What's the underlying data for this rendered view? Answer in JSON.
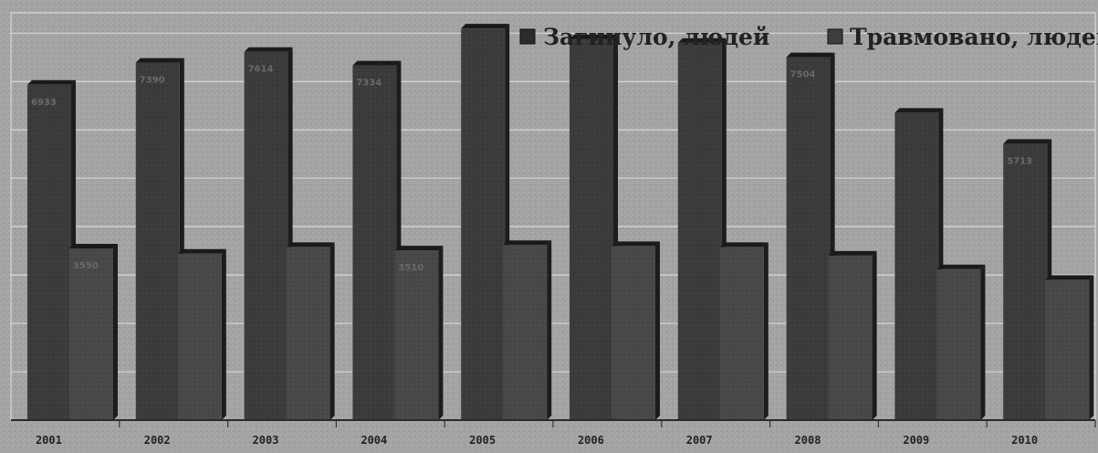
{
  "colors": {
    "background": "#9a9a9a",
    "plot_area": "#a3a3a3",
    "gridline": "#d8d8d8",
    "bar_killed": "#3b3b3b",
    "bar_injured": "#484848",
    "bar_side": "#1c1c1c",
    "text": "#222222"
  },
  "legend": {
    "killed_label": "Загинуло, людей",
    "injured_label": "Травмовано, людей",
    "placement": "top-right"
  },
  "chart_data": {
    "type": "bar",
    "title": "",
    "xlabel": "",
    "ylabel": "",
    "grid": true,
    "categories": [
      "2001",
      "2002",
      "2003",
      "2004",
      "2005",
      "2006",
      "2007",
      "2008",
      "2009",
      "2010"
    ],
    "ylim": [
      0,
      8000
    ],
    "series": [
      {
        "name": "Загинуло, людей",
        "values": [
          6933,
          7390,
          7614,
          7334,
          8097,
          7877,
          7800,
          7504,
          6357,
          5713
        ],
        "labels": [
          "6933",
          "7390",
          "7614",
          "7334",
          "",
          "",
          "",
          "7504",
          "",
          "5713"
        ]
      },
      {
        "name": "Травмовано, людей",
        "values": [
          3550,
          3440,
          3580,
          3510,
          3620,
          3600,
          3580,
          3400,
          3120,
          2900
        ],
        "labels": [
          "3550",
          "",
          "",
          "3510",
          "",
          "",
          "",
          "",
          "",
          ""
        ]
      }
    ]
  }
}
